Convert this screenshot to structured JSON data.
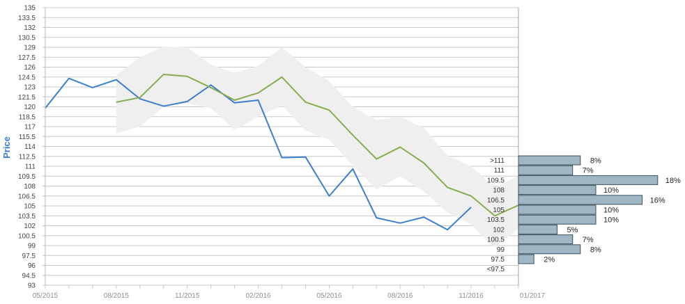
{
  "chart_data": {
    "type": "line",
    "ylabel": "Price",
    "ylim": [
      93,
      135
    ],
    "y_ticks": [
      "135",
      "133.5",
      "132",
      "130.5",
      "129",
      "127.5",
      "126",
      "124.5",
      "123",
      "121.5",
      "120",
      "118.5",
      "117",
      "115.5",
      "114",
      "112.5",
      "111",
      "109.5",
      "108",
      "106.5",
      "105",
      "103.5",
      "102",
      "100.5",
      "99",
      "97.5",
      "96",
      "94.5",
      "93"
    ],
    "x_ticks": [
      "05/2015",
      "08/2015",
      "11/2015",
      "02/2016",
      "05/2016",
      "08/2016",
      "11/2016",
      "01/2017"
    ],
    "series": [
      {
        "color": "#3a7fd0",
        "x": [
          "05/2015",
          "06/2015",
          "07/2015",
          "08/2015",
          "09/2015",
          "10/2015",
          "11/2015",
          "12/2015",
          "01/2016",
          "02/2016",
          "03/2016",
          "04/2016",
          "05/2016",
          "06/2016",
          "07/2016",
          "08/2016",
          "09/2016",
          "10/2016",
          "11/2016"
        ],
        "values": [
          119.8,
          124.3,
          122.9,
          124.1,
          121.2,
          120.1,
          120.8,
          123.3,
          120.6,
          121.0,
          112.3,
          112.4,
          106.5,
          110.6,
          103.2,
          102.4,
          103.3,
          101.4,
          104.8
        ]
      },
      {
        "color": "#86ad4e",
        "x": [
          "08/2015",
          "09/2015",
          "10/2015",
          "11/2015",
          "12/2015",
          "01/2016",
          "02/2016",
          "03/2016",
          "04/2016",
          "05/2016",
          "06/2016",
          "07/2016",
          "08/2016",
          "09/2016",
          "10/2016",
          "11/2016",
          "12/2016",
          "01/2017"
        ],
        "values": [
          120.7,
          121.4,
          124.9,
          124.6,
          122.9,
          121.0,
          122.1,
          124.5,
          120.7,
          119.5,
          115.7,
          112.1,
          113.9,
          111.5,
          107.8,
          106.5,
          103.5,
          105.1
        ]
      }
    ],
    "band": {
      "color": "#efefef",
      "x": [
        "08/2015",
        "09/2015",
        "10/2015",
        "11/2015",
        "12/2015",
        "01/2016",
        "02/2016",
        "03/2016",
        "04/2016",
        "05/2016",
        "06/2016",
        "07/2016",
        "08/2016",
        "09/2016",
        "10/2016",
        "11/2016",
        "12/2016",
        "01/2017"
      ],
      "upper": [
        124.8,
        127.5,
        129.1,
        129.0,
        126.4,
        125.1,
        126.2,
        129.0,
        126.0,
        123.9,
        120.0,
        118.0,
        118.5,
        116.8,
        112.6,
        111.0,
        107.8,
        109.5
      ],
      "lower": [
        116.0,
        117.0,
        120.0,
        120.5,
        119.8,
        116.5,
        118.5,
        120.2,
        116.4,
        115.0,
        111.1,
        107.5,
        109.5,
        107.2,
        104.0,
        102.2,
        98.7,
        101.6
      ]
    },
    "distribution": {
      "bins": [
        {
          "label": ">111",
          "pct": 8,
          "pct_label": "8%"
        },
        {
          "label": "111",
          "pct": 7,
          "pct_label": "7%"
        },
        {
          "label": "109.5",
          "pct": 18,
          "pct_label": "18%"
        },
        {
          "label": "108",
          "pct": 10,
          "pct_label": "10%"
        },
        {
          "label": "106.5",
          "pct": 16,
          "pct_label": "16%"
        },
        {
          "label": "105",
          "pct": 10,
          "pct_label": "10%"
        },
        {
          "label": "103.5",
          "pct": 10,
          "pct_label": "10%"
        },
        {
          "label": "102",
          "pct": 5,
          "pct_label": "5%"
        },
        {
          "label": "100.5",
          "pct": 7,
          "pct_label": "7%"
        },
        {
          "label": "99",
          "pct": 8,
          "pct_label": "8%"
        },
        {
          "label": "97.5",
          "pct": 2,
          "pct_label": "2%"
        },
        {
          "label": "<97.5",
          "pct": null,
          "pct_label": ""
        }
      ],
      "bar_color": "#9fb6c4"
    },
    "grid": true
  }
}
